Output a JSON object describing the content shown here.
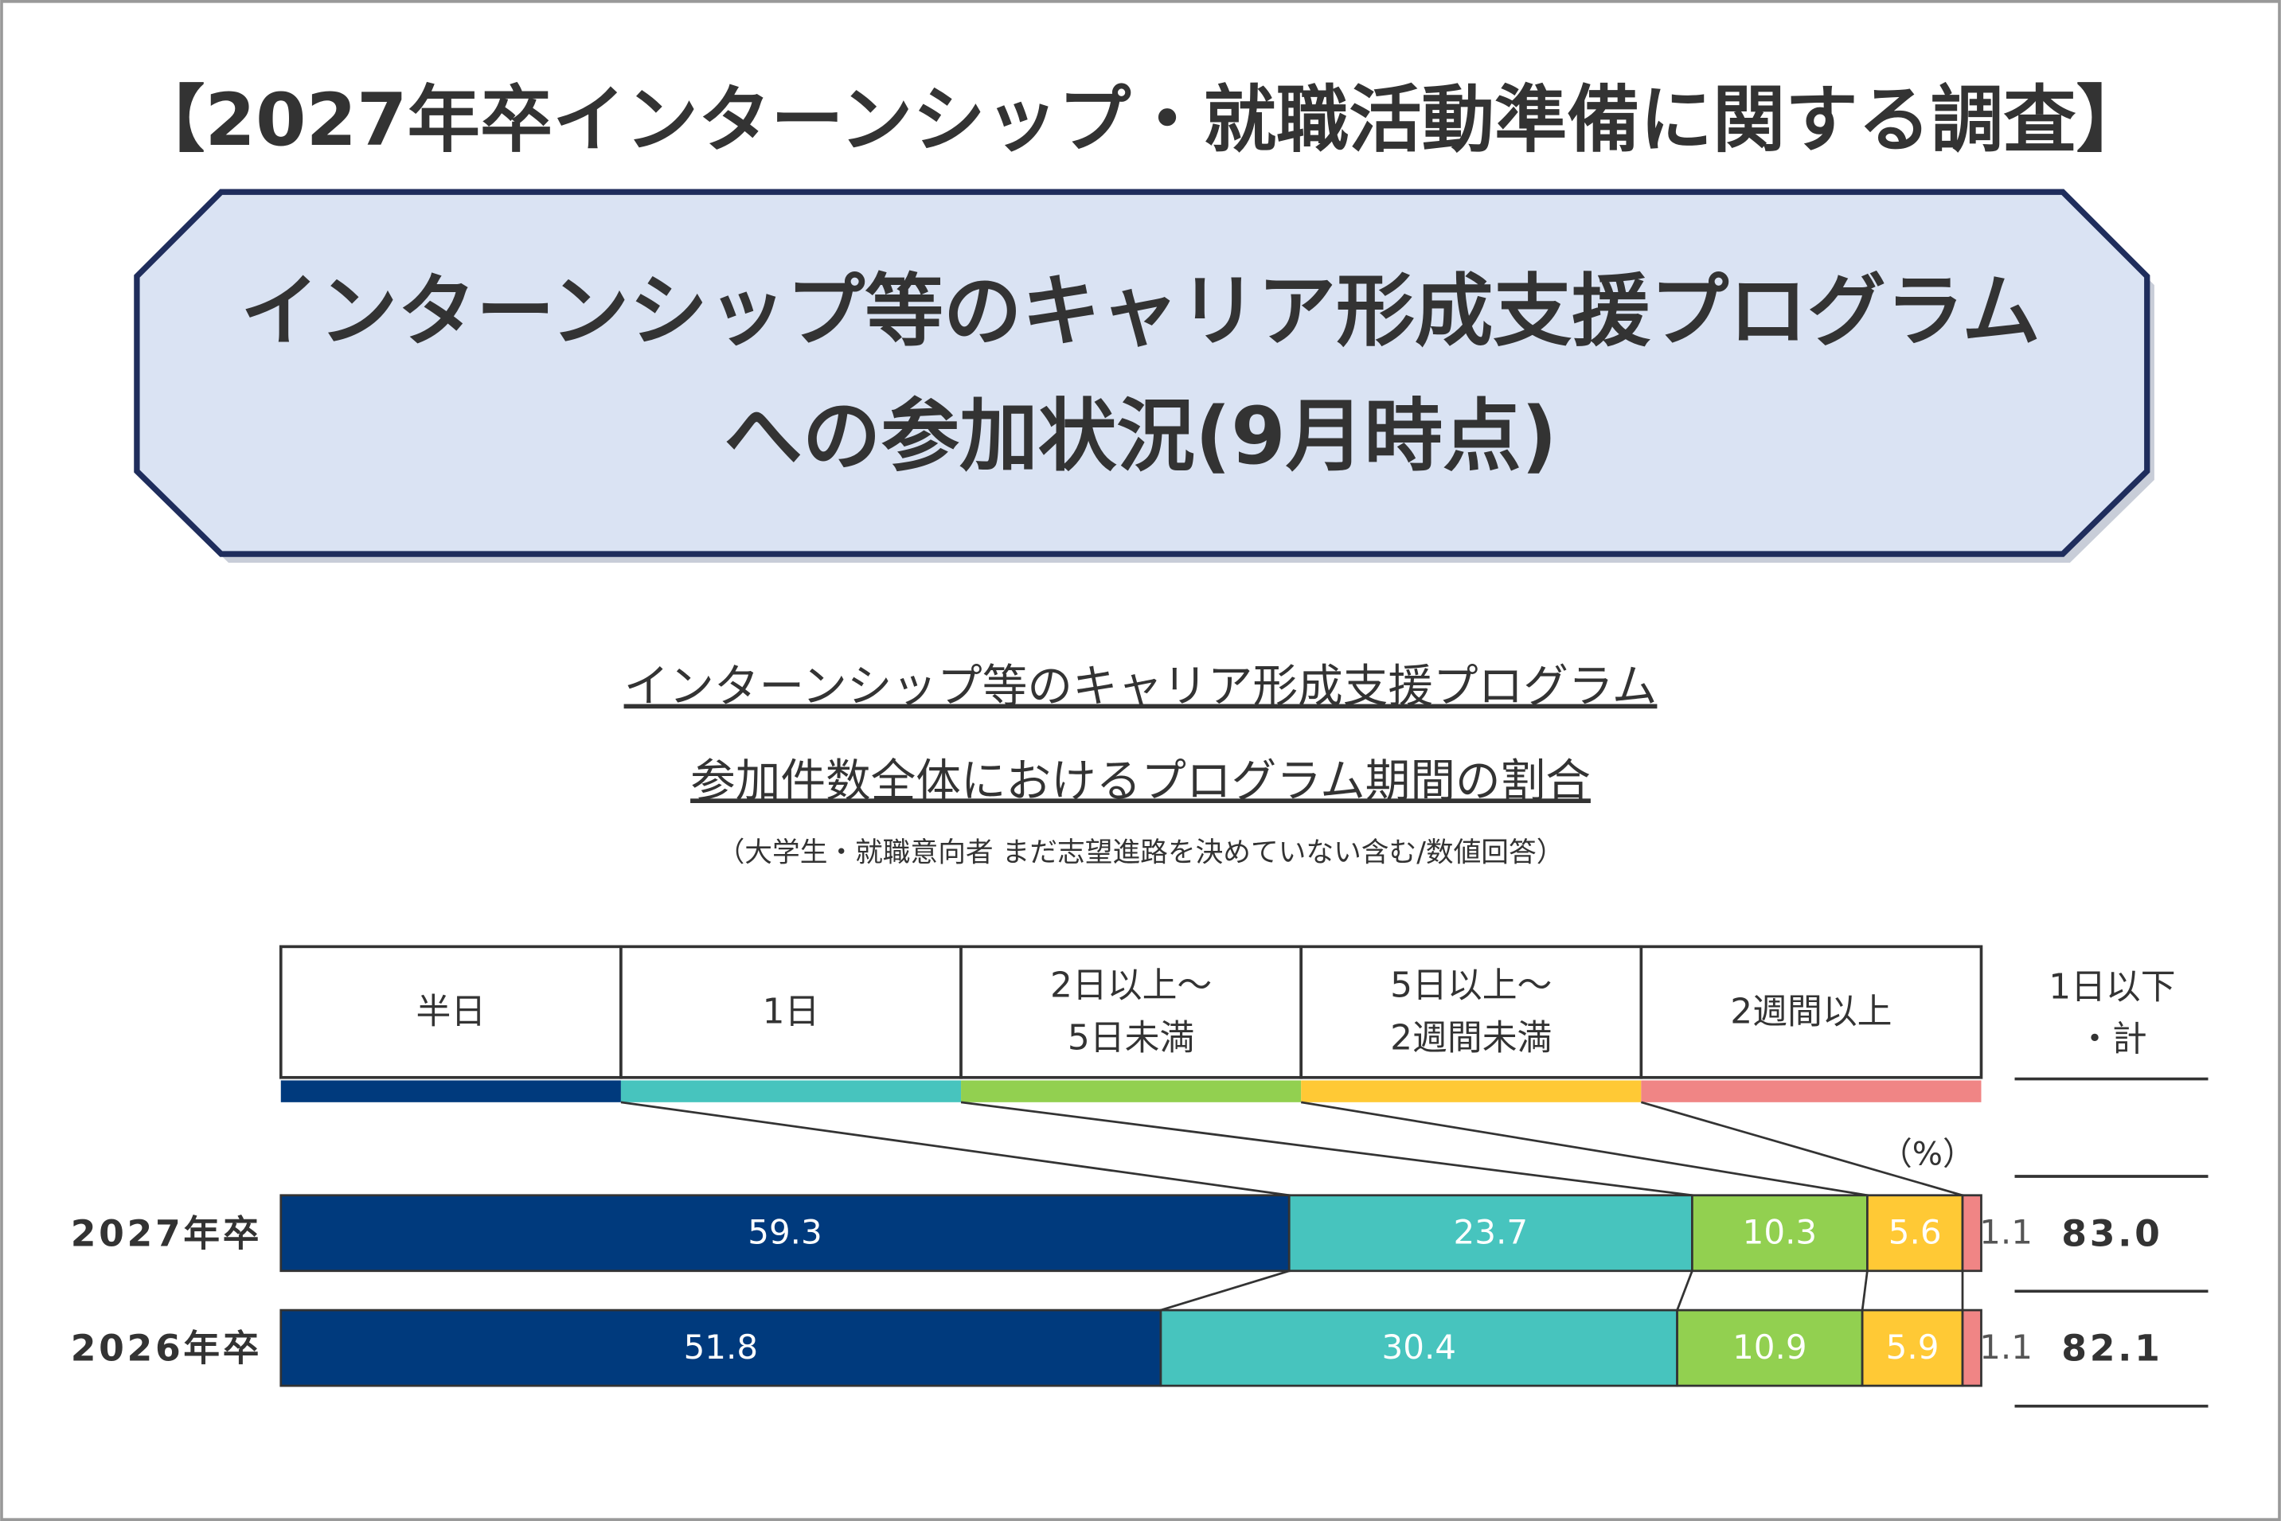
{
  "header": {
    "title": "【2027年卒インターンシップ・就職活動準備に関する調査】",
    "banner": [
      "インターンシップ等のキャリア形成支援プログラム",
      "への参加状況(9月時点)"
    ]
  },
  "chart_data": {
    "type": "stacked_bar",
    "title": [
      "インターンシップ等のキャリア形成支援プログラム",
      "参加件数全体におけるプログラム期間の割合"
    ],
    "subtitle": "（大学生・就職意向者 まだ志望進路を決めていない含む/数値回答）",
    "unit": "（%）",
    "categories": [
      "2027年卒",
      "2026年卒"
    ],
    "series": [
      {
        "name": "半日",
        "color": "#003a7d",
        "values": [
          59.3,
          51.8
        ]
      },
      {
        "name": "1日",
        "color": "#47c4be",
        "values": [
          23.7,
          30.4
        ]
      },
      {
        "name": "2日以上～\n5日未満",
        "color": "#92d050",
        "values": [
          10.3,
          10.9
        ]
      },
      {
        "name": "5日以上～\n2週間未満",
        "color": "#ffc935",
        "values": [
          5.6,
          5.9
        ]
      },
      {
        "name": "2週間以上",
        "color": "#f08585",
        "values": [
          1.1,
          1.1
        ]
      }
    ],
    "totals": {
      "name": "1日以下\n・計",
      "values": [
        83.0,
        82.1
      ],
      "value_labels": [
        "83.0",
        "82.1"
      ]
    }
  }
}
